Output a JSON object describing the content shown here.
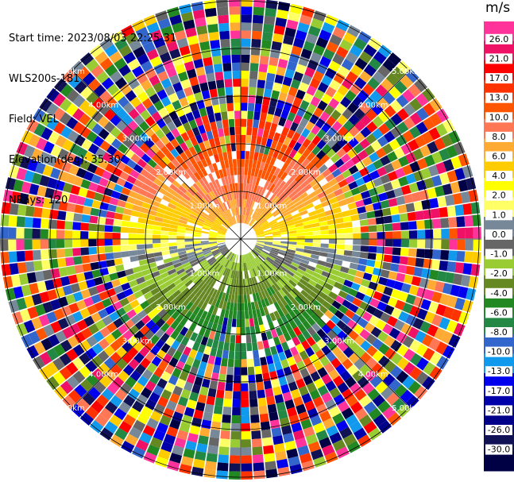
{
  "header": {
    "start_time": "Start time: 2023/08/03 22:25:31",
    "instrument": "WLS200s-181",
    "field": "Field: VEL",
    "elevation": "Elevation(deg): 35.30",
    "nrays": "NRays: 120"
  },
  "legend": {
    "unit": "m/s",
    "colors": [
      "#ff3399",
      "#ee1166",
      "#ff0000",
      "#ff3300",
      "#ff5500",
      "#ff7755",
      "#ffaa33",
      "#ffcc00",
      "#ffff00",
      "#ffff66",
      "#778899",
      "#666666",
      "#99cc33",
      "#668822",
      "#228822",
      "#228844",
      "#3366cc",
      "#1199ee",
      "#0000ee",
      "#0000aa",
      "#000088",
      "#111155",
      "#000044"
    ],
    "labels": [
      "26.0",
      "21.0",
      "17.0",
      "13.0",
      "10.0",
      "8.0",
      "6.0",
      "4.0",
      "2.0",
      "1.0",
      "0.0",
      "-1.0",
      "-2.0",
      "-4.0",
      "-6.0",
      "-8.0",
      "-10.0",
      "-13.0",
      "-17.0",
      "-21.0",
      "-26.0",
      "-30.0"
    ]
  },
  "chart_data": {
    "type": "heatmap",
    "projection": "polar (PPI)",
    "field": "VEL",
    "units": "m/s",
    "nrays": 120,
    "colorbar_ticks": [
      26.0,
      21.0,
      17.0,
      13.0,
      10.0,
      8.0,
      6.0,
      4.0,
      2.0,
      1.0,
      0.0,
      -1.0,
      -2.0,
      -4.0,
      -6.0,
      -8.0,
      -10.0,
      -13.0,
      -17.0,
      -21.0,
      -26.0,
      -30.0
    ],
    "vmin": -30.0,
    "vmax": 30.0,
    "range_rings_km": [
      1.0,
      2.0,
      3.0,
      4.0,
      5.0
    ],
    "range_ring_labels": [
      "1.00km",
      "2.00km",
      "3.00km",
      "4.00km",
      "5.00km"
    ],
    "spokes_deg": [
      0,
      45,
      90,
      135,
      180,
      225,
      270,
      315
    ],
    "pattern": {
      "north_sector": "positive velocities (~+2 to +12 m/s), strongest far north",
      "south_sector": "negative velocities (~-4 to -10 m/s)",
      "near_center_east_west": "near zero (~0 to +3 m/s)",
      "beyond_range_km": 2.5,
      "beyond_range": "noise spanning full color scale"
    }
  }
}
